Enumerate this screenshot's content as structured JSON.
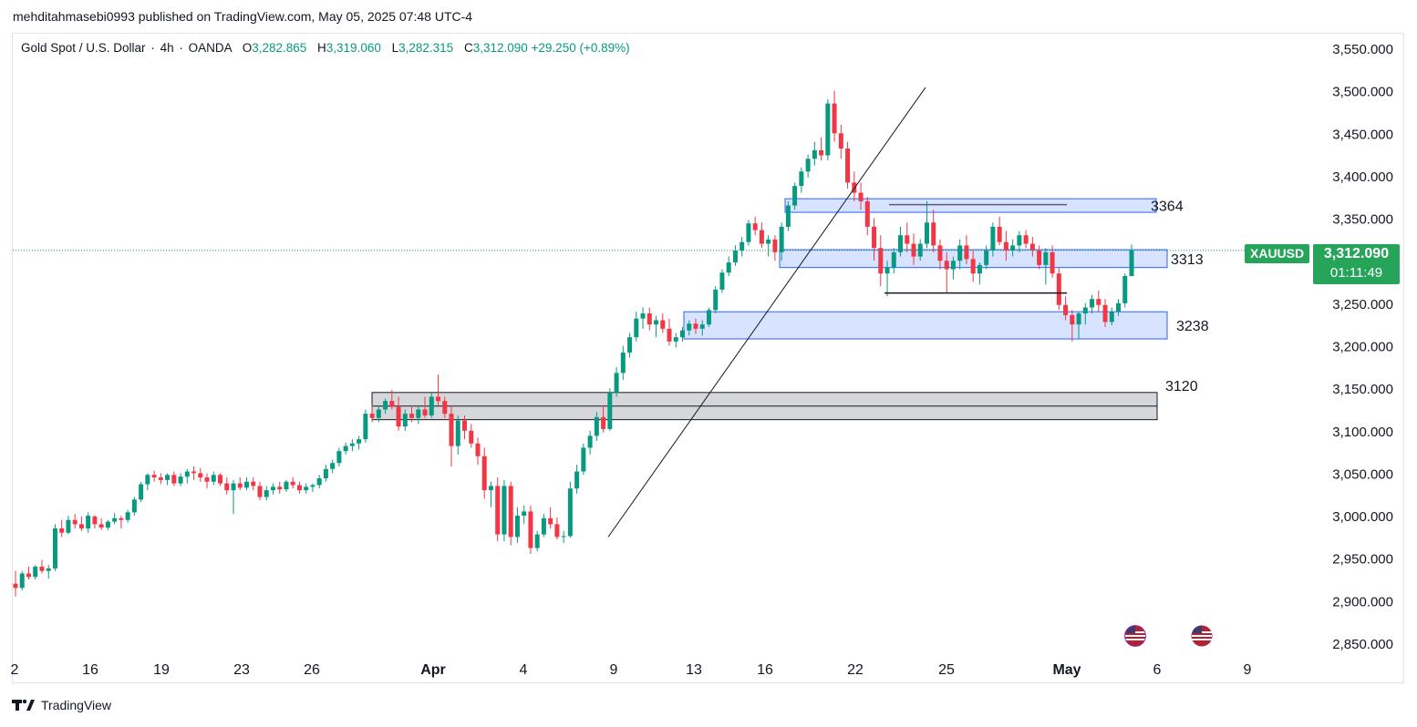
{
  "publisher_line": "mehditahmasebi0993 published on TradingView.com, May 05, 2025 07:48 UTC-4",
  "legend": {
    "symbol": "Gold Spot / U.S. Dollar",
    "interval": "4h",
    "source": "OANDA",
    "open_label": "O",
    "open": "3,282.865",
    "high_label": "H",
    "high": "3,319.060",
    "low_label": "L",
    "low": "3,282.315",
    "close_label": "C",
    "close": "3,312.090",
    "change": "+29.250 (+0.89%)"
  },
  "price_tag": {
    "ticker": "XAUUSD",
    "price": "3,312.090",
    "countdown": "01:11:49",
    "color": "#26a55a"
  },
  "footer": {
    "brand": "TradingView"
  },
  "icons": {
    "event_flags": [
      "us-flag-icon",
      "us-flag-icon"
    ]
  },
  "chart_data": {
    "type": "candlestick",
    "y_ticks": [
      "3,550.000",
      "3,500.000",
      "3,450.000",
      "3,400.000",
      "3,350.000",
      "3,300.000",
      "3,250.000",
      "3,200.000",
      "3,150.000",
      "3,100.000",
      "3,050.000",
      "3,000.000",
      "2,950.000",
      "2,900.000",
      "2,850.000"
    ],
    "y_tick_values": [
      3550,
      3500,
      3450,
      3400,
      3350,
      3300,
      3250,
      3200,
      3150,
      3100,
      3050,
      3000,
      2950,
      2900,
      2850
    ],
    "x_ticks": [
      "2",
      "16",
      "19",
      "23",
      "26",
      "Apr",
      "4",
      "9",
      "13",
      "16",
      "22",
      "25",
      "May",
      "6",
      "9"
    ],
    "bull_color": "#089981",
    "bear_color": "#f23645",
    "current_price": 3312.09,
    "zones": [
      {
        "label": "3364",
        "low": 3357,
        "high": 3373,
        "color": "#2962ff",
        "kind": "blue"
      },
      {
        "label": "3313",
        "low": 3292,
        "high": 3313,
        "color": "#2962ff",
        "kind": "blue"
      },
      {
        "label": "3238",
        "low": 3208,
        "high": 3240,
        "color": "#2962ff",
        "kind": "blue"
      },
      {
        "label": "3120",
        "low": 3113,
        "high": 3145,
        "color": "#787b86",
        "kind": "gray"
      }
    ],
    "trendline": {
      "from_price": 2975,
      "to_price": 3504
    },
    "levels": [
      {
        "price": 3366
      },
      {
        "price": 3262
      }
    ],
    "candles_ohlc": [
      [
        2920,
        2935,
        2905,
        2915
      ],
      [
        2915,
        2935,
        2912,
        2932
      ],
      [
        2932,
        2940,
        2925,
        2928
      ],
      [
        2928,
        2942,
        2925,
        2940
      ],
      [
        2940,
        2948,
        2932,
        2935
      ],
      [
        2935,
        2942,
        2926,
        2938
      ],
      [
        2938,
        2990,
        2935,
        2985
      ],
      [
        2985,
        2995,
        2975,
        2980
      ],
      [
        2980,
        3000,
        2978,
        2995
      ],
      [
        2995,
        3002,
        2985,
        2990
      ],
      [
        2990,
        2999,
        2982,
        2985
      ],
      [
        2985,
        3004,
        2980,
        3000
      ],
      [
        2999,
        3001,
        2985,
        2990
      ],
      [
        2990,
        2997,
        2983,
        2986
      ],
      [
        2986,
        2995,
        2983,
        2993
      ],
      [
        2993,
        3003,
        2990,
        2997
      ],
      [
        2997,
        3000,
        2985,
        2995
      ],
      [
        2995,
        3007,
        2992,
        3004
      ],
      [
        3004,
        3022,
        3000,
        3019
      ],
      [
        3019,
        3040,
        3016,
        3037
      ],
      [
        3037,
        3050,
        3030,
        3048
      ],
      [
        3048,
        3053,
        3040,
        3045
      ],
      [
        3045,
        3050,
        3037,
        3042
      ],
      [
        3042,
        3050,
        3036,
        3048
      ],
      [
        3048,
        3052,
        3035,
        3038
      ],
      [
        3038,
        3050,
        3035,
        3046
      ],
      [
        3046,
        3055,
        3038,
        3052
      ],
      [
        3052,
        3058,
        3042,
        3050
      ],
      [
        3050,
        3056,
        3040,
        3045
      ],
      [
        3045,
        3050,
        3032,
        3040
      ],
      [
        3040,
        3052,
        3036,
        3048
      ],
      [
        3048,
        3050,
        3035,
        3038
      ],
      [
        3038,
        3045,
        3025,
        3030
      ],
      [
        3030,
        3042,
        3002,
        3038
      ],
      [
        3038,
        3045,
        3030,
        3033
      ],
      [
        3033,
        3045,
        3030,
        3040
      ],
      [
        3040,
        3045,
        3030,
        3035
      ],
      [
        3035,
        3040,
        3018,
        3022
      ],
      [
        3022,
        3035,
        3018,
        3030
      ],
      [
        3030,
        3038,
        3025,
        3034
      ],
      [
        3034,
        3040,
        3026,
        3031
      ],
      [
        3031,
        3042,
        3028,
        3040
      ],
      [
        3040,
        3045,
        3032,
        3036
      ],
      [
        3036,
        3040,
        3026,
        3030
      ],
      [
        3030,
        3038,
        3026,
        3034
      ],
      [
        3034,
        3038,
        3028,
        3036
      ],
      [
        3036,
        3048,
        3032,
        3044
      ],
      [
        3044,
        3060,
        3040,
        3055
      ],
      [
        3055,
        3066,
        3050,
        3062
      ],
      [
        3062,
        3080,
        3058,
        3076
      ],
      [
        3076,
        3086,
        3072,
        3082
      ],
      [
        3082,
        3090,
        3076,
        3085
      ],
      [
        3085,
        3094,
        3078,
        3090
      ],
      [
        3090,
        3125,
        3086,
        3120
      ],
      [
        3120,
        3130,
        3110,
        3115
      ],
      [
        3115,
        3130,
        3110,
        3125
      ],
      [
        3125,
        3138,
        3120,
        3135
      ],
      [
        3135,
        3148,
        3125,
        3128
      ],
      [
        3128,
        3140,
        3100,
        3105
      ],
      [
        3105,
        3125,
        3100,
        3120
      ],
      [
        3120,
        3128,
        3110,
        3115
      ],
      [
        3115,
        3130,
        3108,
        3125
      ],
      [
        3125,
        3140,
        3115,
        3118
      ],
      [
        3118,
        3145,
        3115,
        3140
      ],
      [
        3140,
        3166,
        3130,
        3135
      ],
      [
        3135,
        3140,
        3115,
        3120
      ],
      [
        3120,
        3130,
        3058,
        3082
      ],
      [
        3082,
        3118,
        3072,
        3112
      ],
      [
        3112,
        3118,
        3090,
        3100
      ],
      [
        3100,
        3108,
        3080,
        3085
      ],
      [
        3085,
        3092,
        3060,
        3070
      ],
      [
        3070,
        3080,
        3020,
        3030
      ],
      [
        3030,
        3040,
        3010,
        3035
      ],
      [
        3035,
        3045,
        2970,
        2978
      ],
      [
        2978,
        3042,
        2970,
        3035
      ],
      [
        3035,
        3040,
        2965,
        2975
      ],
      [
        2975,
        3010,
        2968,
        3000
      ],
      [
        3000,
        3012,
        2990,
        3005
      ],
      [
        3005,
        3012,
        2955,
        2962
      ],
      [
        2962,
        2982,
        2958,
        2978
      ],
      [
        2978,
        3002,
        2975,
        2997
      ],
      [
        2997,
        3010,
        2985,
        2990
      ],
      [
        2990,
        2998,
        2972,
        2975
      ],
      [
        2975,
        2982,
        2968,
        2976
      ],
      [
        2976,
        3040,
        2974,
        3032
      ],
      [
        3032,
        3060,
        3026,
        3052
      ],
      [
        3052,
        3085,
        3048,
        3080
      ],
      [
        3080,
        3100,
        3072,
        3094
      ],
      [
        3094,
        3122,
        3088,
        3116
      ],
      [
        3116,
        3130,
        3098,
        3102
      ],
      [
        3102,
        3150,
        3100,
        3145
      ],
      [
        3145,
        3175,
        3140,
        3168
      ],
      [
        3168,
        3200,
        3160,
        3192
      ],
      [
        3192,
        3215,
        3186,
        3210
      ],
      [
        3210,
        3240,
        3205,
        3232
      ],
      [
        3232,
        3245,
        3220,
        3238
      ],
      [
        3238,
        3245,
        3218,
        3225
      ],
      [
        3225,
        3235,
        3210,
        3230
      ],
      [
        3230,
        3238,
        3215,
        3220
      ],
      [
        3220,
        3232,
        3200,
        3205
      ],
      [
        3205,
        3215,
        3198,
        3210
      ],
      [
        3210,
        3222,
        3205,
        3218
      ],
      [
        3218,
        3230,
        3212,
        3226
      ],
      [
        3226,
        3232,
        3214,
        3220
      ],
      [
        3220,
        3230,
        3212,
        3225
      ],
      [
        3225,
        3245,
        3222,
        3242
      ],
      [
        3242,
        3270,
        3238,
        3266
      ],
      [
        3266,
        3290,
        3262,
        3286
      ],
      [
        3286,
        3305,
        3282,
        3298
      ],
      [
        3298,
        3318,
        3294,
        3312
      ],
      [
        3312,
        3328,
        3305,
        3322
      ],
      [
        3322,
        3348,
        3318,
        3344
      ],
      [
        3344,
        3352,
        3330,
        3336
      ],
      [
        3336,
        3345,
        3315,
        3320
      ],
      [
        3320,
        3330,
        3305,
        3325
      ],
      [
        3325,
        3330,
        3300,
        3310
      ],
      [
        3310,
        3345,
        3300,
        3340
      ],
      [
        3340,
        3370,
        3335,
        3365
      ],
      [
        3365,
        3392,
        3360,
        3388
      ],
      [
        3388,
        3410,
        3380,
        3405
      ],
      [
        3405,
        3425,
        3398,
        3420
      ],
      [
        3420,
        3440,
        3412,
        3430
      ],
      [
        3430,
        3445,
        3418,
        3424
      ],
      [
        3424,
        3490,
        3418,
        3485
      ],
      [
        3485,
        3500,
        3440,
        3450
      ],
      [
        3450,
        3460,
        3420,
        3432
      ],
      [
        3432,
        3440,
        3385,
        3392
      ],
      [
        3392,
        3405,
        3370,
        3380
      ],
      [
        3380,
        3392,
        3360,
        3370
      ],
      [
        3370,
        3375,
        3330,
        3340
      ],
      [
        3340,
        3350,
        3300,
        3315
      ],
      [
        3315,
        3330,
        3270,
        3285
      ],
      [
        3285,
        3300,
        3258,
        3292
      ],
      [
        3292,
        3315,
        3285,
        3310
      ],
      [
        3310,
        3340,
        3305,
        3330
      ],
      [
        3330,
        3345,
        3310,
        3320
      ],
      [
        3320,
        3332,
        3295,
        3305
      ],
      [
        3305,
        3325,
        3300,
        3320
      ],
      [
        3320,
        3370,
        3315,
        3345
      ],
      [
        3345,
        3360,
        3310,
        3318
      ],
      [
        3318,
        3325,
        3290,
        3300
      ],
      [
        3300,
        3310,
        3262,
        3290
      ],
      [
        3290,
        3305,
        3278,
        3300
      ],
      [
        3300,
        3325,
        3290,
        3318
      ],
      [
        3318,
        3330,
        3296,
        3302
      ],
      [
        3302,
        3312,
        3275,
        3285
      ],
      [
        3285,
        3298,
        3272,
        3295
      ],
      [
        3295,
        3318,
        3290,
        3312
      ],
      [
        3312,
        3345,
        3305,
        3340
      ],
      [
        3340,
        3352,
        3318,
        3322
      ],
      [
        3322,
        3335,
        3300,
        3312
      ],
      [
        3312,
        3325,
        3305,
        3318
      ],
      [
        3318,
        3335,
        3310,
        3330
      ],
      [
        3330,
        3336,
        3315,
        3320
      ],
      [
        3320,
        3328,
        3305,
        3312
      ],
      [
        3312,
        3318,
        3290,
        3295
      ],
      [
        3295,
        3315,
        3272,
        3310
      ],
      [
        3310,
        3318,
        3280,
        3285
      ],
      [
        3285,
        3292,
        3242,
        3248
      ],
      [
        3248,
        3258,
        3230,
        3236
      ],
      [
        3236,
        3242,
        3205,
        3225
      ],
      [
        3225,
        3240,
        3208,
        3238
      ],
      [
        3238,
        3250,
        3225,
        3245
      ],
      [
        3245,
        3260,
        3238,
        3255
      ],
      [
        3255,
        3265,
        3240,
        3248
      ],
      [
        3248,
        3255,
        3222,
        3228
      ],
      [
        3228,
        3245,
        3224,
        3240
      ],
      [
        3240,
        3255,
        3235,
        3250
      ],
      [
        3250,
        3285,
        3245,
        3282
      ],
      [
        3282,
        3319,
        3282,
        3312
      ]
    ]
  }
}
